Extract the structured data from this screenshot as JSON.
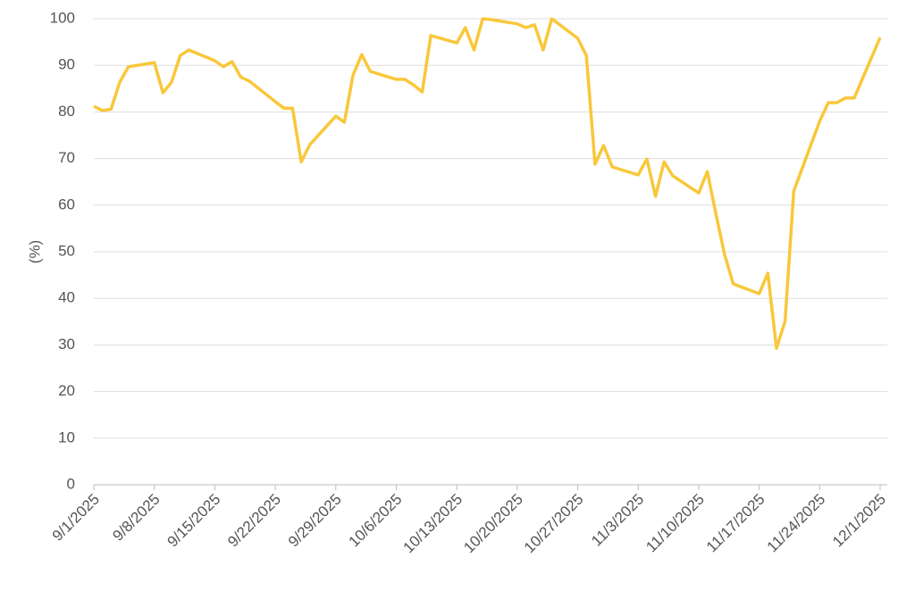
{
  "chart_data": {
    "type": "line",
    "y_label": "(%)",
    "x": [
      "9/1/2025",
      "9/2/2025",
      "9/3/2025",
      "9/4/2025",
      "9/5/2025",
      "9/8/2025",
      "9/9/2025",
      "9/10/2025",
      "9/11/2025",
      "9/12/2025",
      "9/15/2025",
      "9/16/2025",
      "9/17/2025",
      "9/18/2025",
      "9/19/2025",
      "9/22/2025",
      "9/23/2025",
      "9/24/2025",
      "9/25/2025",
      "9/26/2025",
      "9/29/2025",
      "9/30/2025",
      "10/1/2025",
      "10/2/2025",
      "10/3/2025",
      "10/6/2025",
      "10/7/2025",
      "10/8/2025",
      "10/9/2025",
      "10/10/2025",
      "10/13/2025",
      "10/14/2025",
      "10/15/2025",
      "10/16/2025",
      "10/17/2025",
      "10/20/2025",
      "10/21/2025",
      "10/22/2025",
      "10/23/2025",
      "10/24/2025",
      "10/27/2025",
      "10/28/2025",
      "10/29/2025",
      "10/30/2025",
      "10/31/2025",
      "11/3/2025",
      "11/4/2025",
      "11/5/2025",
      "11/6/2025",
      "11/7/2025",
      "11/10/2025",
      "11/11/2025",
      "11/12/2025",
      "11/13/2025",
      "11/14/2025",
      "11/17/2025",
      "11/18/2025",
      "11/19/2025",
      "11/20/2025",
      "11/21/2025",
      "11/24/2025",
      "11/25/2025",
      "11/26/2025",
      "11/27/2025",
      "11/28/2025",
      "12/1/2025"
    ],
    "series": [
      {
        "color": "#f9c73a",
        "values": [
          81.2,
          80.3,
          80.6,
          86.4,
          89.7,
          90.6,
          84.1,
          86.4,
          92.1,
          93.3,
          91.0,
          89.7,
          90.8,
          87.5,
          86.6,
          82.2,
          80.8,
          80.8,
          69.3,
          73.0,
          79.1,
          77.8,
          87.9,
          92.3,
          88.7,
          87.0,
          87.0,
          85.8,
          84.3,
          96.4,
          94.8,
          98.1,
          93.3,
          100,
          99.8,
          98.9,
          98.1,
          98.7,
          93.3,
          100,
          95.8,
          92.1,
          68.8,
          72.8,
          68.2,
          66.5,
          69.9,
          61.9,
          69.3,
          66.3,
          62.6,
          67.2,
          58.0,
          49.4,
          43.1,
          41.0,
          45.4,
          29.3,
          35.1,
          63.0,
          78.0,
          82.0,
          82.0,
          83.0,
          83.0,
          96.0
        ]
      }
    ],
    "xlim": [
      "9/1/2025",
      "12/1/2025"
    ],
    "xticks": [
      "9/1/2025",
      "9/8/2025",
      "9/15/2025",
      "9/22/2025",
      "9/29/2025",
      "10/6/2025",
      "10/13/2025",
      "10/20/2025",
      "10/27/2025",
      "11/3/2025",
      "11/10/2025",
      "11/17/2025",
      "11/24/2025",
      "12/1/2025"
    ],
    "ylim": [
      0,
      100
    ],
    "yticks": [
      0,
      10,
      20,
      30,
      40,
      50,
      60,
      70,
      80,
      90,
      100
    ],
    "grid": true
  }
}
